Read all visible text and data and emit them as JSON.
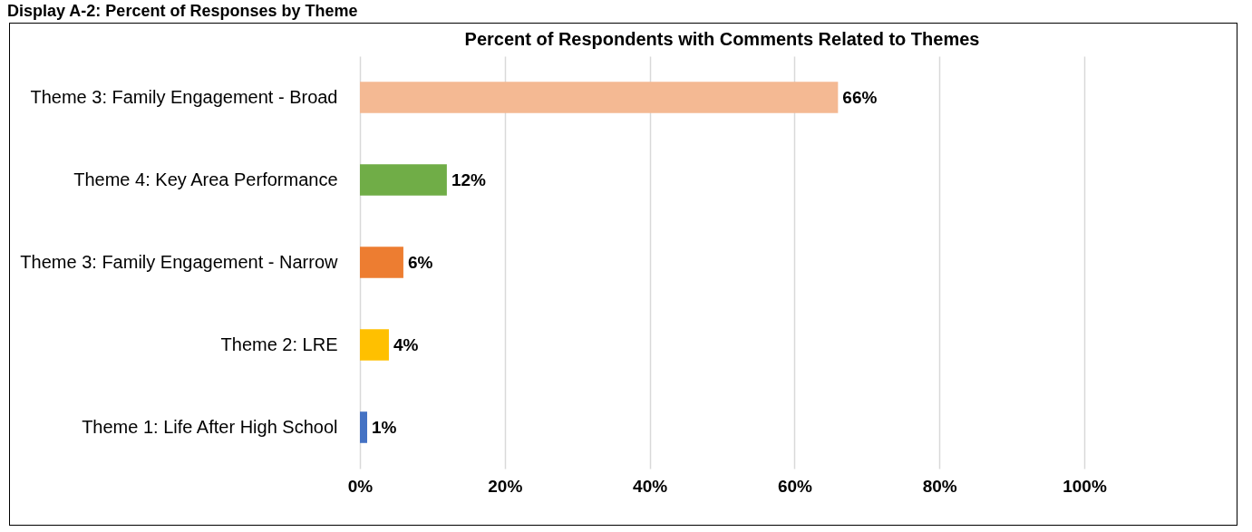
{
  "chart_data": {
    "type": "bar",
    "orientation": "horizontal",
    "title": "Percent of Respondents with Comments Related to Themes",
    "annotations": [
      "Display A-2: Percent of Responses by Theme"
    ],
    "categories": [
      "Theme 3: Family Engagement - Broad",
      "Theme 4: Key Area Performance",
      "Theme 3: Family Engagement - Narrow",
      "Theme 2: LRE",
      "Theme 1: Life After High School"
    ],
    "values": [
      66,
      12,
      6,
      4,
      1
    ],
    "colors": [
      "#f4b993",
      "#70ad47",
      "#ed7d31",
      "#ffc000",
      "#4472c4"
    ],
    "value_labels": [
      "66%",
      "12%",
      "6%",
      "4%",
      "1%"
    ],
    "xlim": [
      0,
      100
    ],
    "xticks": [
      {
        "value": 0,
        "label": "0%"
      },
      {
        "value": 20,
        "label": "20%"
      },
      {
        "value": 40,
        "label": "40%"
      },
      {
        "value": 60,
        "label": "60%"
      },
      {
        "value": 80,
        "label": "80%"
      },
      {
        "value": 100,
        "label": "100%"
      }
    ],
    "grid": "x",
    "legend": false
  }
}
